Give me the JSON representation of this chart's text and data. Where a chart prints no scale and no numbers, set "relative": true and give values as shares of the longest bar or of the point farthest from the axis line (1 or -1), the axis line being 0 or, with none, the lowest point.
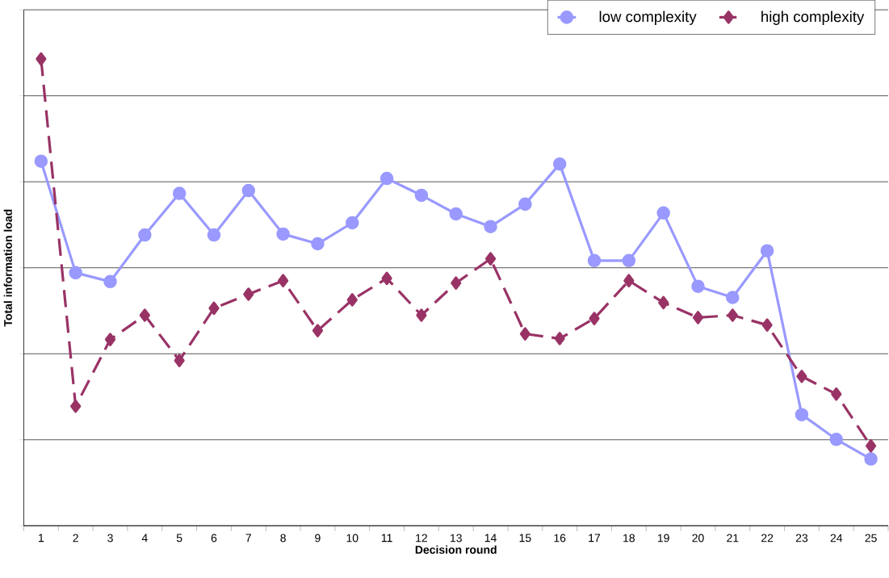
{
  "chart_data": {
    "type": "line",
    "relative": true,
    "xlabel": "Decision round",
    "ylabel": "Total information load",
    "categories": [
      "1",
      "2",
      "3",
      "4",
      "5",
      "6",
      "7",
      "8",
      "9",
      "10",
      "11",
      "12",
      "13",
      "14",
      "15",
      "16",
      "17",
      "18",
      "19",
      "20",
      "21",
      "22",
      "23",
      "24",
      "25"
    ],
    "series": [
      {
        "name": "low complexity",
        "color": "#9999ff",
        "marker": "circle",
        "line_style": "solid",
        "values": [
          0.781,
          0.542,
          0.523,
          0.623,
          0.712,
          0.623,
          0.718,
          0.625,
          0.604,
          0.649,
          0.744,
          0.708,
          0.668,
          0.641,
          0.689,
          0.775,
          0.568,
          0.568,
          0.67,
          0.513,
          0.489,
          0.589,
          0.238,
          0.185,
          0.143
        ]
      },
      {
        "name": "high complexity",
        "color": "#993366",
        "marker": "diamond",
        "line_style": "dashed",
        "values": [
          1.0,
          0.256,
          0.399,
          0.451,
          0.354,
          0.466,
          0.496,
          0.525,
          0.418,
          0.484,
          0.53,
          0.451,
          0.52,
          0.572,
          0.411,
          0.401,
          0.444,
          0.525,
          0.478,
          0.446,
          0.451,
          0.43,
          0.32,
          0.282,
          0.171
        ]
      }
    ],
    "grid": "y",
    "legend": "top right"
  }
}
